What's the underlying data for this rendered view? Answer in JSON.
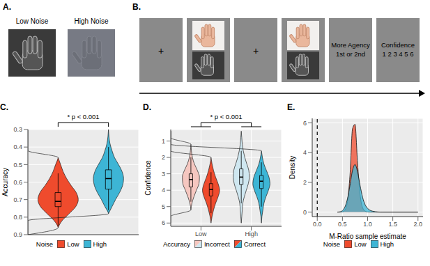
{
  "chart_data": [
    {
      "type": "violin",
      "title": "C.",
      "ylabel": "Accuracy",
      "categories": [
        "Low",
        "High"
      ],
      "legend_title": "Noise",
      "legend": "bottom",
      "tick_labels": "y",
      "grid": true,
      "annotation": "* p < 0.001",
      "ylim": [
        0.3,
        0.9
      ],
      "yticks": [
        0.3,
        0.4,
        0.5,
        0.6,
        0.7,
        0.8,
        0.9
      ],
      "y": [
        0.3,
        0.34,
        0.38,
        0.42,
        0.46,
        0.5,
        0.54,
        0.58,
        0.62,
        0.66,
        0.7,
        0.74,
        0.78,
        0.82,
        0.86,
        0.9
      ],
      "series": [
        {
          "name": "Low",
          "color": "#ef4b2d",
          "violins": [
            {
              "density": [
                null,
                null,
                null,
                null,
                0,
                0.05,
                0.1,
                0.17,
                0.26,
                0.36,
                0.4,
                0.35,
                0.22,
                0.08,
                0,
                null
              ],
              "box": {
                "whisker_low": 0.55,
                "q1": 0.66,
                "median": 0.71,
                "q3": 0.74,
                "whisker_high": 0.85
              }
            },
            null
          ]
        },
        {
          "name": "High",
          "color": "#3db5d5",
          "violins": [
            null,
            {
              "density": [
                0,
                0.01,
                0.03,
                0.07,
                0.12,
                0.2,
                0.27,
                0.3,
                0.28,
                0.22,
                0.14,
                0.07,
                0,
                null,
                null,
                null
              ],
              "box": {
                "whisker_low": 0.4,
                "q1": 0.53,
                "median": 0.58,
                "q3": 0.64,
                "whisker_high": 0.76
              }
            }
          ]
        }
      ]
    },
    {
      "type": "violin",
      "title": "D.",
      "ylabel": "Confidence",
      "categories": [
        "Low",
        "High"
      ],
      "legend_title": "Accuracy",
      "legend": "bottom",
      "grid": true,
      "annotation": "* p < 0.001",
      "ylim": [
        0.3,
        6.2
      ],
      "yticks": [
        1,
        2,
        3,
        4,
        5,
        6
      ],
      "y": [
        0.4,
        0.8,
        1.2,
        1.6,
        2.0,
        2.4,
        2.8,
        3.2,
        3.6,
        4.0,
        4.4,
        4.8,
        5.2,
        5.6,
        6.0
      ],
      "series": [
        {
          "name": "Incorrect",
          "colors": [
            "#f5c7c0",
            "#cfe7f0"
          ],
          "violins": [
            {
              "density": [
                null,
                null,
                0,
                0.01,
                0.03,
                0.07,
                0.13,
                0.17,
                0.16,
                0.11,
                0.06,
                0.02,
                0,
                null,
                null
              ],
              "box": {
                "whisker_low": 2.0,
                "q1": 3.0,
                "median": 3.35,
                "q3": 3.8,
                "whisker_high": 4.7
              }
            },
            {
              "density": [
                0,
                0.01,
                0.02,
                0.04,
                0.07,
                0.11,
                0.15,
                0.16,
                0.14,
                0.1,
                0.06,
                0.03,
                0.02,
                0.01,
                0
              ],
              "box": {
                "whisker_low": 1.6,
                "q1": 2.7,
                "median": 3.2,
                "q3": 3.65,
                "whisker_high": 4.8
              }
            }
          ]
        },
        {
          "name": "Correct",
          "colors": [
            "#ef4b2d",
            "#3db5d5"
          ],
          "violins": [
            {
              "density": [
                null,
                null,
                null,
                null,
                0,
                0.02,
                0.05,
                0.09,
                0.14,
                0.17,
                0.14,
                0.09,
                0.05,
                0.02,
                0
              ],
              "box": {
                "whisker_low": 2.9,
                "q1": 3.6,
                "median": 3.95,
                "q3": 4.35,
                "whisker_high": 5.4
              }
            },
            {
              "density": [
                null,
                null,
                null,
                0,
                0.02,
                0.05,
                0.1,
                0.15,
                0.17,
                0.14,
                0.09,
                0.05,
                0.03,
                0.01,
                0
              ],
              "box": {
                "whisker_low": 2.3,
                "q1": 3.1,
                "median": 3.45,
                "q3": 3.9,
                "whisker_high": 5.0
              }
            }
          ]
        }
      ]
    },
    {
      "type": "area",
      "title": "E.",
      "xlabel": "M-Ratio sample estimate",
      "ylabel": "Density",
      "legend_title": "Noise",
      "legend": "bottom",
      "grid": true,
      "xlim": [
        -0.1,
        2.1
      ],
      "xticks": [
        {
          "value": 0,
          "label": "0.0"
        },
        0.5,
        {
          "value": 1,
          "label": "1.0"
        },
        1.5,
        {
          "value": 2,
          "label": "2.0"
        }
      ],
      "ylim": [
        -0.3,
        6.3
      ],
      "yticks": [
        0,
        2,
        4,
        6
      ],
      "vline": 0,
      "x": [
        0.4,
        0.45,
        0.5,
        0.55,
        0.6,
        0.65,
        0.7,
        0.75,
        0.8,
        0.85,
        0.9,
        0.95,
        1.0,
        1.05,
        1.1,
        1.15,
        1.2,
        1.25,
        1.3,
        1.5,
        2.0
      ],
      "series": [
        {
          "name": "Low",
          "color": "#ef4b2d",
          "values": [
            0,
            0,
            0.02,
            0.15,
            0.7,
            2.5,
            5.6,
            5.9,
            3.3,
            1.2,
            0.3,
            0.07,
            0.01,
            0,
            0,
            0,
            0,
            0,
            0,
            0,
            0
          ]
        },
        {
          "name": "High",
          "color": "#3db5d5",
          "values": [
            0,
            0.02,
            0.1,
            0.35,
            0.9,
            1.8,
            2.8,
            3.2,
            2.7,
            1.8,
            1.0,
            0.5,
            0.25,
            0.12,
            0.06,
            0.03,
            0.01,
            0,
            0,
            0,
            0
          ]
        }
      ]
    }
  ],
  "panels": {
    "A": {
      "title": "A.",
      "images": [
        "Low Noise",
        "High Noise"
      ]
    },
    "B": {
      "title": "B.",
      "fixation": "+",
      "choice": [
        "More Agency",
        "1st or 2nd"
      ],
      "confidence": [
        "Confidence",
        "1 2 3 4 5 6"
      ]
    }
  }
}
